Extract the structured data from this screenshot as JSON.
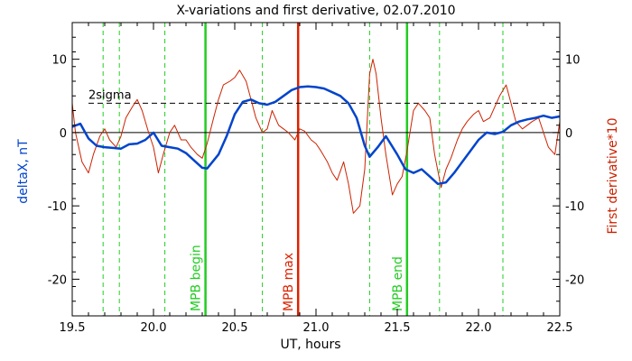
{
  "chart_data": {
    "type": "line",
    "title": "X-variations and first derivative, 02.07.2010",
    "xlabel": "UT, hours",
    "ylabel_left": "deltaX, nT",
    "ylabel_right": "First derivative*10",
    "xlim": [
      19.5,
      22.5
    ],
    "ylim": [
      -25,
      15
    ],
    "x_ticks": [
      19.5,
      20.0,
      20.5,
      21.0,
      21.5,
      22.0,
      22.5
    ],
    "x_tick_labels": [
      "19.5",
      "20.0",
      "20.5",
      "21.0",
      "21.5",
      "22.0",
      "22.5"
    ],
    "y_ticks": [
      -20,
      -10,
      0,
      10
    ],
    "y_tick_labels": [
      "-20",
      "-10",
      "0",
      "10"
    ],
    "sigma_level": 4,
    "sigma_label": "2sigma",
    "colors": {
      "deltaX": "#0044cc",
      "derivative": "#cc2200",
      "green": "#22cc22",
      "red": "#dd2200",
      "axis": "#000000"
    },
    "vertical_lines": [
      {
        "x": 20.32,
        "label": "MPB begin",
        "style": "solid",
        "color": "green"
      },
      {
        "x": 20.89,
        "label": "MPB max",
        "style": "solid",
        "color": "red"
      },
      {
        "x": 21.56,
        "label": "MPB end",
        "style": "solid",
        "color": "green"
      },
      {
        "x": 19.69,
        "label": "",
        "style": "dashed",
        "color": "green"
      },
      {
        "x": 19.79,
        "label": "",
        "style": "dashed",
        "color": "green"
      },
      {
        "x": 20.07,
        "label": "",
        "style": "dashed",
        "color": "green"
      },
      {
        "x": 20.67,
        "label": "",
        "style": "dashed",
        "color": "green"
      },
      {
        "x": 21.33,
        "label": "",
        "style": "dashed",
        "color": "green"
      },
      {
        "x": 21.76,
        "label": "",
        "style": "dashed",
        "color": "green"
      },
      {
        "x": 22.15,
        "label": "",
        "style": "dashed",
        "color": "green"
      }
    ],
    "series": [
      {
        "name": "deltaX, nT",
        "color": "deltaX",
        "x": [
          19.5,
          19.55,
          19.6,
          19.65,
          19.7,
          19.75,
          19.8,
          19.85,
          19.9,
          19.95,
          20.0,
          20.05,
          20.1,
          20.15,
          20.2,
          20.25,
          20.3,
          20.33,
          20.4,
          20.45,
          20.5,
          20.55,
          20.6,
          20.65,
          20.7,
          20.75,
          20.8,
          20.85,
          20.9,
          20.95,
          21.0,
          21.05,
          21.1,
          21.15,
          21.2,
          21.25,
          21.3,
          21.33,
          21.38,
          21.43,
          21.5,
          21.55,
          21.6,
          21.65,
          21.7,
          21.75,
          21.8,
          21.85,
          21.9,
          21.95,
          22.0,
          22.05,
          22.1,
          22.15,
          22.2,
          22.25,
          22.3,
          22.35,
          22.4,
          22.45,
          22.5
        ],
        "y": [
          0.8,
          1.2,
          -0.8,
          -1.8,
          -2.0,
          -2.1,
          -2.2,
          -1.6,
          -1.5,
          -1.0,
          0.0,
          -1.8,
          -2.0,
          -2.2,
          -2.8,
          -3.8,
          -4.8,
          -4.9,
          -3.0,
          -0.5,
          2.5,
          4.2,
          4.5,
          4.0,
          3.8,
          4.2,
          5.0,
          5.8,
          6.2,
          6.3,
          6.2,
          6.0,
          5.5,
          5.0,
          4.0,
          2.0,
          -1.8,
          -3.3,
          -2.0,
          -0.5,
          -3.0,
          -5.0,
          -5.5,
          -5.0,
          -6.0,
          -7.0,
          -6.8,
          -5.5,
          -4.0,
          -2.5,
          -1.0,
          0.0,
          -0.2,
          0.1,
          1.0,
          1.5,
          1.8,
          2.0,
          2.3,
          2.0,
          2.2
        ]
      },
      {
        "name": "First derivative*10",
        "color": "derivative",
        "x": [
          19.5,
          19.52,
          19.56,
          19.6,
          19.63,
          19.67,
          19.7,
          19.73,
          19.77,
          19.8,
          19.83,
          19.87,
          19.9,
          19.93,
          19.97,
          20.0,
          20.03,
          20.06,
          20.1,
          20.13,
          20.17,
          20.2,
          20.23,
          20.27,
          20.3,
          20.33,
          20.37,
          20.4,
          20.43,
          20.47,
          20.5,
          20.53,
          20.57,
          20.6,
          20.63,
          20.67,
          20.7,
          20.73,
          20.77,
          20.8,
          20.83,
          20.87,
          20.9,
          20.93,
          20.97,
          21.0,
          21.03,
          21.07,
          21.1,
          21.13,
          21.17,
          21.2,
          21.23,
          21.27,
          21.3,
          21.33,
          21.35,
          21.37,
          21.4,
          21.43,
          21.47,
          21.5,
          21.53,
          21.56,
          21.6,
          21.63,
          21.67,
          21.7,
          21.73,
          21.77,
          21.8,
          21.83,
          21.87,
          21.9,
          21.93,
          21.97,
          22.0,
          22.03,
          22.07,
          22.1,
          22.13,
          22.17,
          22.2,
          22.23,
          22.27,
          22.3,
          22.33,
          22.37,
          22.4,
          22.43,
          22.47,
          22.5
        ],
        "y": [
          4.0,
          0.0,
          -4.0,
          -5.5,
          -3.0,
          -0.5,
          0.5,
          -1.0,
          -2.0,
          -0.5,
          2.0,
          3.5,
          4.5,
          3.0,
          0.0,
          -2.0,
          -5.5,
          -3.0,
          0.0,
          1.0,
          -1.0,
          -1.0,
          -2.0,
          -3.0,
          -3.5,
          -1.5,
          2.0,
          4.5,
          6.5,
          7.0,
          7.5,
          8.5,
          7.0,
          4.5,
          2.0,
          0.0,
          0.5,
          3.0,
          1.0,
          0.5,
          0.0,
          -1.0,
          0.5,
          0.2,
          -1.0,
          -1.5,
          -2.5,
          -4.0,
          -5.5,
          -6.5,
          -4.0,
          -7.0,
          -11.0,
          -10.0,
          -5.0,
          8.0,
          10.0,
          8.0,
          2.0,
          -3.0,
          -8.5,
          -7.0,
          -6.0,
          -2.5,
          3.0,
          4.0,
          3.0,
          2.0,
          -3.0,
          -7.5,
          -5.0,
          -3.5,
          -1.0,
          0.5,
          1.5,
          2.5,
          3.0,
          1.5,
          2.0,
          3.5,
          5.0,
          6.5,
          4.0,
          1.5,
          0.5,
          1.0,
          1.5,
          2.0,
          0.0,
          -2.0,
          -3.0,
          1.5
        ]
      }
    ]
  }
}
